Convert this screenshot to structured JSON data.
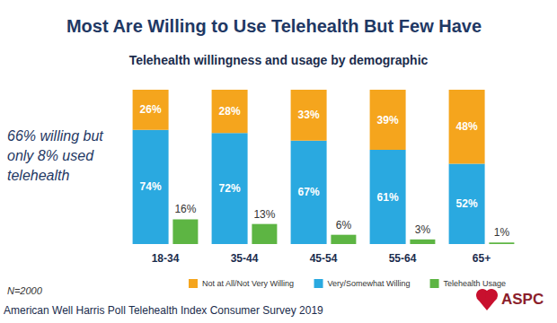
{
  "chart_data": {
    "type": "bar",
    "title": "Most Are Willing to Use Telehealth But Few Have",
    "subtitle": "Telehealth willingness and usage by demographic",
    "annotation": "66% willing but only 8% used telehealth",
    "note": "N=2000",
    "source": "American Well Harris Poll Telehealth Index Consumer Survey 2019",
    "logo_text": "ASPC",
    "categories": [
      "18-34",
      "35-44",
      "45-54",
      "55-64",
      "65+"
    ],
    "series": [
      {
        "name": "Not at All/Not Very Willing",
        "color": "#f5a51d",
        "stacked": true,
        "values": [
          26,
          28,
          33,
          39,
          48
        ],
        "value_labels": [
          "26%",
          "28%",
          "33%",
          "39%",
          "48%"
        ]
      },
      {
        "name": "Very/Somewhat Willing",
        "color": "#2aa9e0",
        "stacked": true,
        "values": [
          74,
          72,
          67,
          61,
          52
        ],
        "value_labels": [
          "74%",
          "72%",
          "67%",
          "61%",
          "52%"
        ]
      },
      {
        "name": "Telehealth Usage",
        "color": "#5db543",
        "values": [
          16,
          13,
          6,
          3,
          1
        ],
        "value_labels": [
          "16%",
          "13%",
          "6%",
          "3%",
          "1%"
        ]
      }
    ],
    "ylim": [
      0,
      100
    ],
    "data_labels": true,
    "tick_labels": "x",
    "grid": false,
    "legend": "bottom"
  }
}
